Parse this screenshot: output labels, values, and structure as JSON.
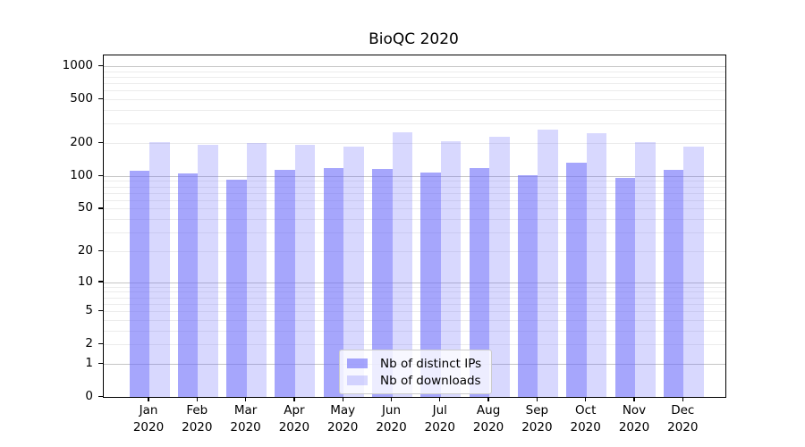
{
  "title": "BioQC 2020",
  "chart_data": {
    "type": "bar",
    "title": "BioQC 2020",
    "categories": [
      "Jan 2020",
      "Feb 2020",
      "Mar 2020",
      "Apr 2020",
      "May 2020",
      "Jun 2020",
      "Jul 2020",
      "Aug 2020",
      "Sep 2020",
      "Oct 2020",
      "Nov 2020",
      "Dec 2020"
    ],
    "series": [
      {
        "name": "Nb of distinct IPs",
        "color": "rgba(106,106,250,0.60)",
        "color_solid": "#aaaaf8",
        "values": [
          111,
          105,
          93,
          113,
          118,
          116,
          107,
          118,
          102,
          133,
          97,
          113
        ]
      },
      {
        "name": "Nb of downloads",
        "color": "rgba(106,106,250,0.26)",
        "color_solid": "#d9d9f8",
        "values": [
          202,
          192,
          201,
          194,
          187,
          252,
          208,
          228,
          265,
          244,
          203,
          187
        ]
      }
    ],
    "xlabel": "",
    "ylabel": "",
    "yscale": "log1p",
    "y_ticks": [
      0,
      1,
      2,
      5,
      10,
      20,
      50,
      100,
      200,
      500,
      1000
    ],
    "ylim": [
      0,
      1206
    ],
    "grid": "horizontal",
    "legend_position": "lower-center-inside",
    "colors": {
      "grid_major": "#c6c6c6",
      "grid_minor": "#ececec",
      "spine": "#000000",
      "text": "#000000",
      "background": "#ffffff"
    }
  }
}
